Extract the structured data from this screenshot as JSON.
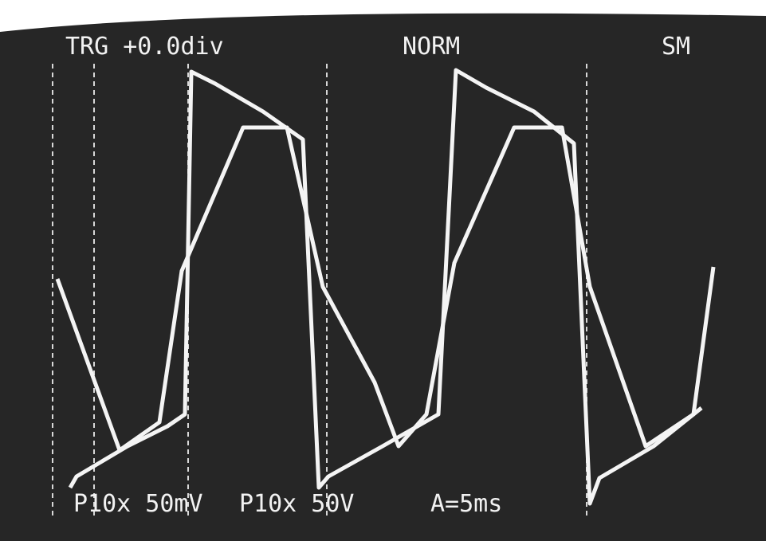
{
  "header": {
    "trigger": "TRG +0.0div",
    "mode": "NORM",
    "acquisition": "SM"
  },
  "footer": {
    "channel_1": "P10x 50mV",
    "channel_2": "P10x 50V",
    "timebase": "A=5ms"
  }
}
